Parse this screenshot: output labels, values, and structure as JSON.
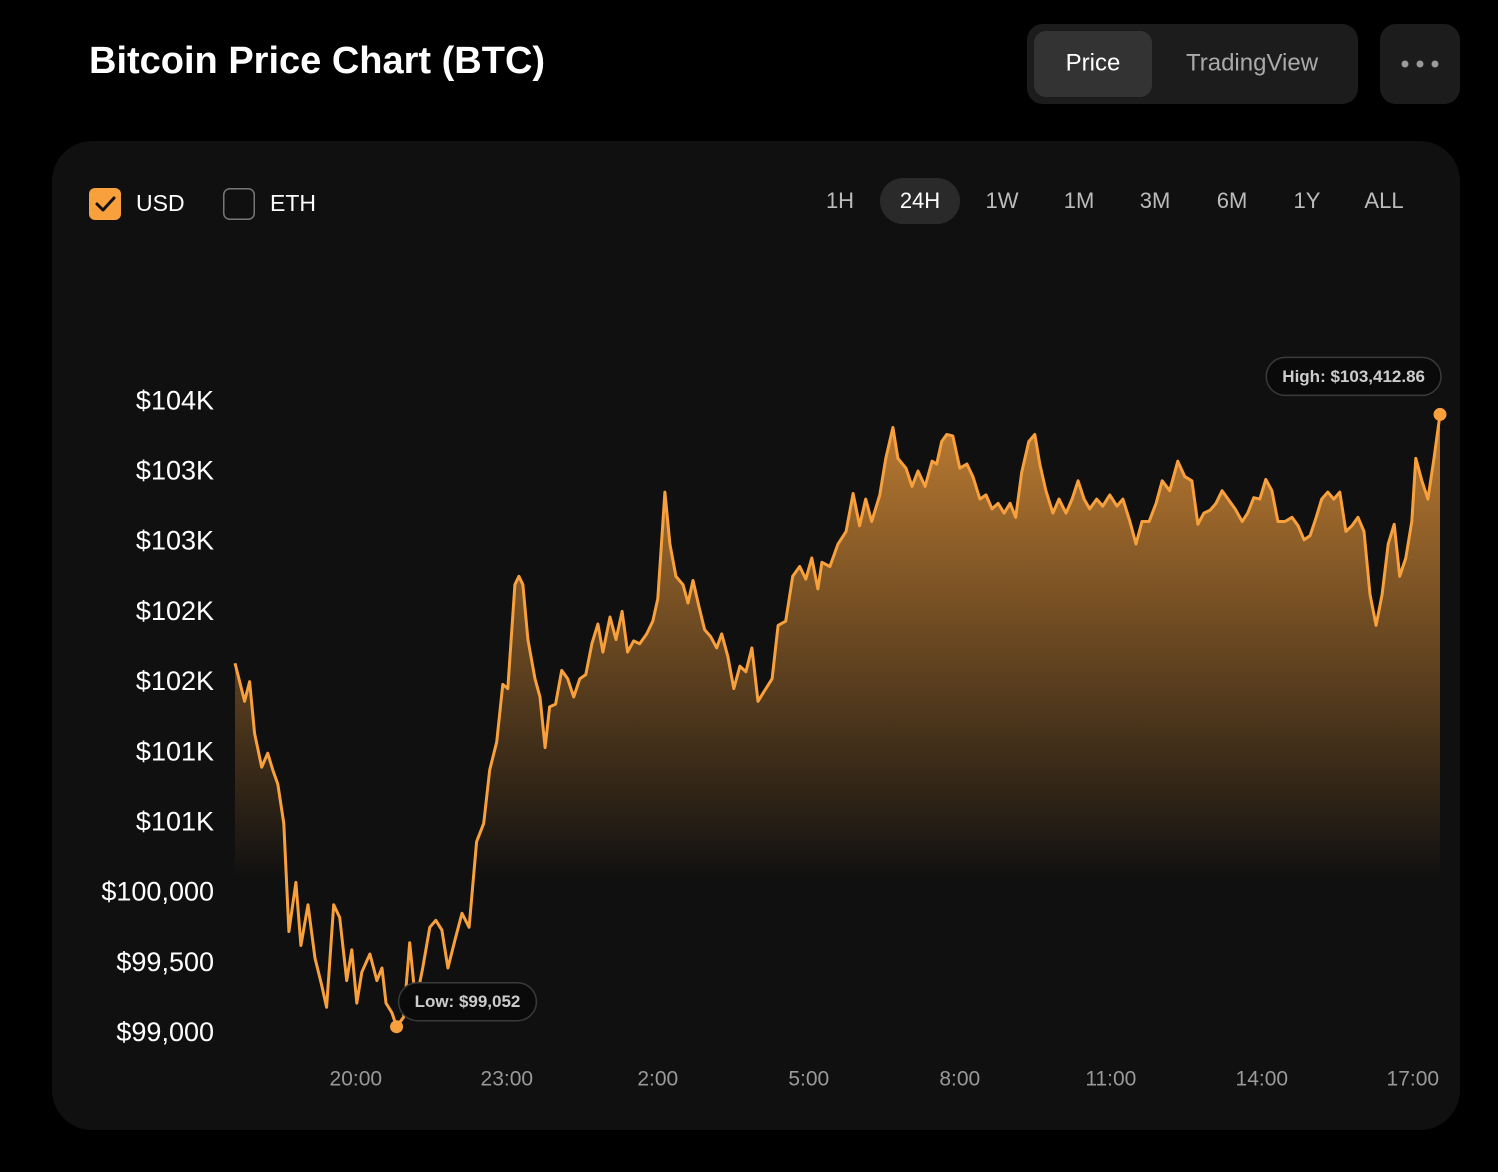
{
  "header": {
    "title": "Bitcoin Price Chart (BTC)",
    "tabs": [
      {
        "label": "Price",
        "selected": true
      },
      {
        "label": "TradingView",
        "selected": false
      }
    ]
  },
  "controls": {
    "currencies": [
      {
        "label": "USD",
        "checked": true
      },
      {
        "label": "ETH",
        "checked": false
      }
    ],
    "ranges": [
      {
        "label": "1H",
        "selected": false
      },
      {
        "label": "24H",
        "selected": true
      },
      {
        "label": "1W",
        "selected": false
      },
      {
        "label": "1M",
        "selected": false
      },
      {
        "label": "3M",
        "selected": false
      },
      {
        "label": "6M",
        "selected": false
      },
      {
        "label": "1Y",
        "selected": false
      },
      {
        "label": "ALL",
        "selected": false
      }
    ]
  },
  "chart_data": {
    "type": "area",
    "color": "#f7a03c",
    "x": [
      17.6,
      17.79,
      17.89,
      17.99,
      18.13,
      18.25,
      18.35,
      18.45,
      18.57,
      18.67,
      18.81,
      18.91,
      19.05,
      19.19,
      19.32,
      19.42,
      19.56,
      19.68,
      19.82,
      19.92,
      20.02,
      20.12,
      20.28,
      20.42,
      20.52,
      20.6,
      20.72,
      20.81,
      20.95,
      21.07,
      21.19,
      21.33,
      21.47,
      21.59,
      21.71,
      21.83,
      21.97,
      22.11,
      22.25,
      22.4,
      22.54,
      22.66,
      22.8,
      22.92,
      23.02,
      23.16,
      23.24,
      23.32,
      23.42,
      23.56,
      23.66,
      23.76,
      23.85,
      23.97,
      24.09,
      24.21,
      24.33,
      24.45,
      24.57,
      24.69,
      24.81,
      24.91,
      25.05,
      25.17,
      25.29,
      25.4,
      25.52,
      25.64,
      25.78,
      25.9,
      26,
      26.14,
      26.24,
      26.36,
      26.5,
      26.6,
      26.7,
      26.82,
      26.93,
      27.05,
      27.17,
      27.27,
      27.39,
      27.51,
      27.63,
      27.75,
      27.87,
      27.99,
      28.13,
      28.27,
      28.39,
      28.54,
      28.68,
      28.82,
      28.94,
      29.06,
      29.18,
      29.26,
      29.42,
      29.58,
      29.74,
      29.88,
      30.01,
      30.13,
      30.25,
      30.41,
      30.53,
      30.67,
      30.77,
      30.93,
      31.05,
      31.17,
      31.31,
      31.45,
      31.54,
      31.64,
      31.74,
      31.86,
      32,
      32.14,
      32.26,
      32.4,
      32.52,
      32.64,
      32.76,
      32.88,
      33,
      33.11,
      33.23,
      33.37,
      33.49,
      33.59,
      33.71,
      33.85,
      33.97,
      34.11,
      34.23,
      34.35,
      34.47,
      34.58,
      34.72,
      34.84,
      34.98,
      35.12,
      35.24,
      35.38,
      35.5,
      35.62,
      35.76,
      35.9,
      36.02,
      36.17,
      36.33,
      36.47,
      36.61,
      36.73,
      36.85,
      36.97,
      37.09,
      37.21,
      37.33,
      37.47,
      37.61,
      37.72,
      37.84,
      37.96,
      38.08,
      38.2,
      38.32,
      38.46,
      38.6,
      38.72,
      38.84,
      38.96,
      39.08,
      39.19,
      39.31,
      39.43,
      39.55,
      39.67,
      39.79,
      39.91,
      40.03,
      40.15,
      40.27,
      40.39,
      40.51,
      40.63,
      40.74,
      40.86,
      40.98,
      41.06,
      41.18,
      41.3,
      41.42,
      41.54
    ],
    "values": [
      101640,
      101370,
      101510,
      101140,
      100900,
      101000,
      100880,
      100780,
      100500,
      99730,
      100080,
      99630,
      99920,
      99540,
      99350,
      99190,
      99920,
      99830,
      99380,
      99600,
      99220,
      99440,
      99570,
      99380,
      99470,
      99220,
      99150,
      99052,
      99120,
      99650,
      99220,
      99470,
      99760,
      99810,
      99740,
      99470,
      99670,
      99860,
      99760,
      100370,
      100500,
      100880,
      101080,
      101490,
      101460,
      102200,
      102260,
      102200,
      101810,
      101530,
      101400,
      101040,
      101330,
      101350,
      101590,
      101530,
      101400,
      101530,
      101560,
      101780,
      101920,
      101720,
      101970,
      101810,
      102010,
      101720,
      101800,
      101780,
      101850,
      101940,
      102100,
      102860,
      102490,
      102260,
      102200,
      102070,
      102230,
      102040,
      101880,
      101830,
      101750,
      101850,
      101690,
      101460,
      101620,
      101580,
      101750,
      101370,
      101450,
      101530,
      101910,
      101940,
      102260,
      102330,
      102240,
      102390,
      102170,
      102360,
      102330,
      102490,
      102580,
      102850,
      102620,
      102810,
      102650,
      102840,
      103100,
      103320,
      103100,
      103030,
      102900,
      103010,
      102900,
      103080,
      103060,
      103220,
      103270,
      103260,
      103030,
      103060,
      102970,
      102810,
      102840,
      102740,
      102780,
      102710,
      102780,
      102680,
      103000,
      103220,
      103270,
      103060,
      102870,
      102710,
      102810,
      102710,
      102810,
      102940,
      102810,
      102740,
      102810,
      102760,
      102840,
      102760,
      102810,
      102650,
      102490,
      102650,
      102650,
      102780,
      102940,
      102870,
      103080,
      102970,
      102940,
      102630,
      102710,
      102730,
      102780,
      102870,
      102810,
      102740,
      102650,
      102710,
      102820,
      102810,
      102950,
      102870,
      102650,
      102650,
      102680,
      102620,
      102520,
      102550,
      102680,
      102810,
      102860,
      102810,
      102860,
      102580,
      102620,
      102680,
      102580,
      102130,
      101910,
      102130,
      102490,
      102630,
      102260,
      102390,
      102650,
      103100,
      102940,
      102810,
      103100,
      103412.86
    ],
    "xlim": [
      17.6,
      41.54
    ],
    "ylim": [
      99000,
      104000
    ],
    "xticks": [
      {
        "value": 20,
        "label": "20:00"
      },
      {
        "value": 23,
        "label": "23:00"
      },
      {
        "value": 26,
        "label": "2:00"
      },
      {
        "value": 29,
        "label": "5:00"
      },
      {
        "value": 32,
        "label": "8:00"
      },
      {
        "value": 35,
        "label": "11:00"
      },
      {
        "value": 38,
        "label": "14:00"
      },
      {
        "value": 41,
        "label": "17:00"
      }
    ],
    "yticks": [
      {
        "value": 99000,
        "label": "$99,000"
      },
      {
        "value": 99500,
        "label": "$99,500"
      },
      {
        "value": 100000,
        "label": "$100,000"
      },
      {
        "value": 100500,
        "label": "$101K"
      },
      {
        "value": 101000,
        "label": "$101K"
      },
      {
        "value": 101500,
        "label": "$102K"
      },
      {
        "value": 102000,
        "label": "$102K"
      },
      {
        "value": 102500,
        "label": "$103K"
      },
      {
        "value": 103000,
        "label": "$103K"
      },
      {
        "value": 103500,
        "label": "$104K"
      }
    ],
    "annotations": [
      {
        "label": "High: $103,412.86",
        "x": 41.54,
        "y": 103412.86
      },
      {
        "label": "Low: $99,052",
        "x": 20.81,
        "y": 99052
      }
    ]
  }
}
